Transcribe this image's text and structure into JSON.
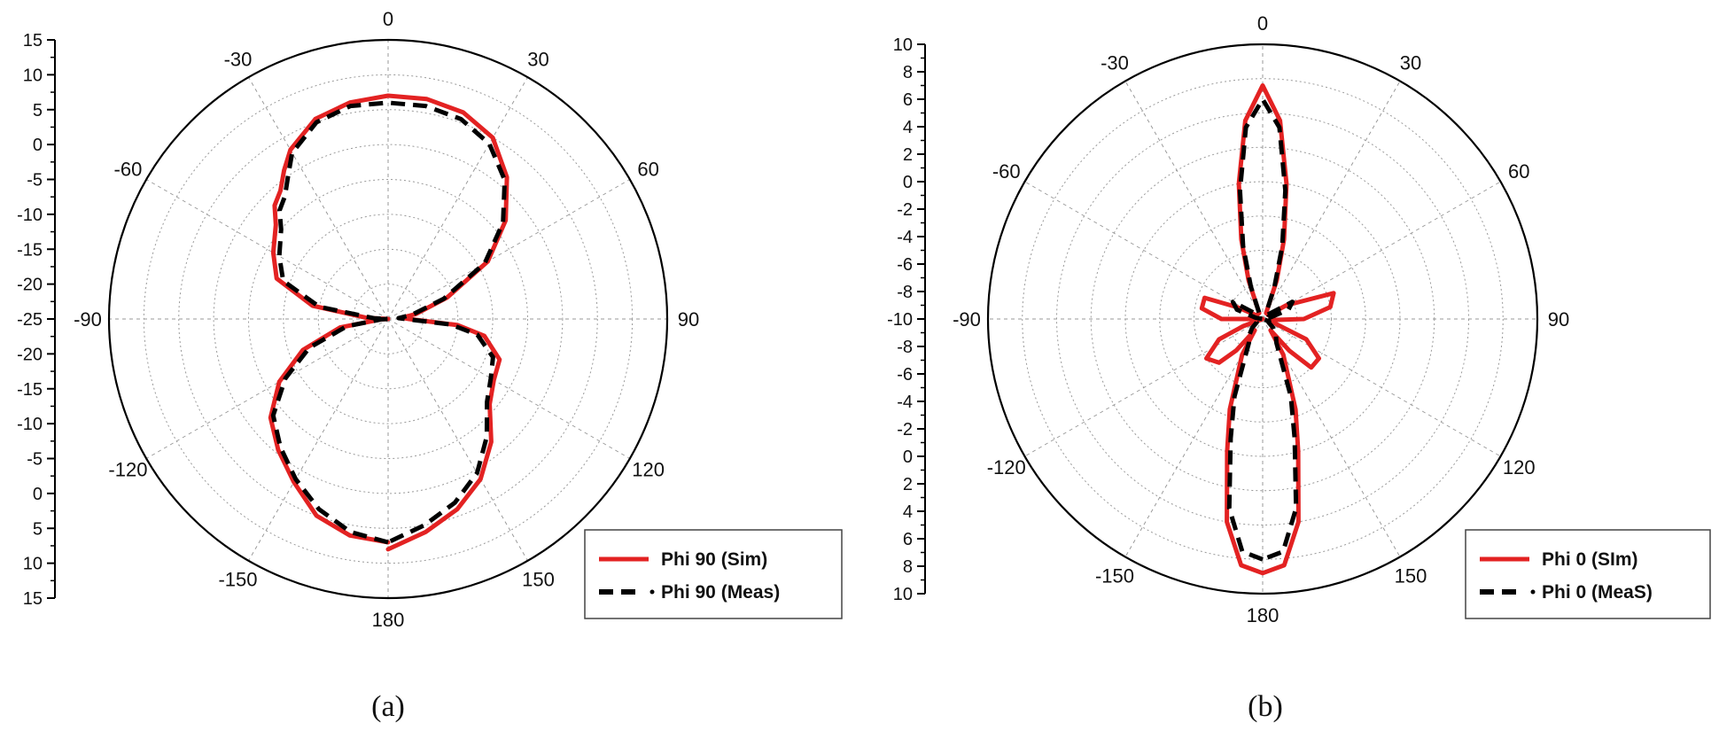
{
  "colors": {
    "sim": "#e32222",
    "meas": "#000000",
    "grid": "#9a9a9a",
    "axis": "#000000"
  },
  "chart_data": [
    {
      "type": "polar",
      "caption": "(a)",
      "angle_labels": [
        "0",
        "30",
        "60",
        "90",
        "120",
        "150",
        "180",
        "-150",
        "-120",
        "-90",
        "-60",
        "-30"
      ],
      "radial_ticks": [
        "15",
        "10",
        "5",
        "0",
        "-5",
        "-10",
        "-15",
        "-20",
        "-25",
        "-20",
        "-15",
        "-10",
        "-5",
        "0",
        "5",
        "10",
        "15"
      ],
      "r_min": -25,
      "r_max": 15,
      "legend": {
        "sim_label": "Phi 90 (Sim)",
        "meas_label": "Phi 90 (Meas)",
        "position": "bottom-right"
      },
      "series": [
        {
          "name": "Phi 90 (Sim)",
          "style": "solid",
          "theta": [
            -180,
            -170,
            -160,
            -150,
            -140,
            -130,
            -120,
            -110,
            -100,
            -93,
            -90,
            -87,
            -80,
            -70,
            -60,
            -50,
            -45,
            -40,
            -35,
            -30,
            -20,
            -10,
            0,
            10,
            20,
            30,
            40,
            50,
            60,
            70,
            80,
            85,
            90,
            95,
            100,
            110,
            120,
            130,
            140,
            150,
            160,
            170,
            180
          ],
          "r": [
            7,
            6.5,
            5,
            2,
            -0.5,
            -3,
            -7,
            -12,
            -18,
            -24,
            -25,
            -22,
            -14,
            -8,
            -6,
            -4,
            -2,
            -1,
            1,
            3,
            5.5,
            6.5,
            7,
            7,
            6.5,
            5,
            1.5,
            -3,
            -8.5,
            -16,
            -21,
            -23,
            -22,
            -15,
            -11,
            -8,
            -7.5,
            -6,
            -2,
            1.5,
            4,
            6,
            8
          ]
        },
        {
          "name": "Phi 90 (Meas)",
          "style": "dashed",
          "theta": [
            -180,
            -170,
            -160,
            -150,
            -140,
            -130,
            -120,
            -110,
            -100,
            -93,
            -90,
            -87,
            -80,
            -70,
            -60,
            -50,
            -45,
            -40,
            -35,
            -30,
            -20,
            -10,
            0,
            10,
            20,
            30,
            40,
            50,
            60,
            70,
            80,
            85,
            90,
            95,
            100,
            110,
            120,
            130,
            140,
            150,
            160,
            170,
            180
          ],
          "r": [
            7,
            6,
            4,
            1.5,
            -1,
            -3.5,
            -8,
            -13,
            -19,
            -24,
            -25,
            -23,
            -15,
            -9,
            -7,
            -5,
            -3,
            -2,
            0,
            2.5,
            5,
            6,
            6,
            6,
            5.5,
            4,
            1,
            -3.5,
            -9,
            -16.5,
            -21.5,
            -23.5,
            -22.5,
            -16,
            -12,
            -9,
            -8,
            -6.5,
            -3,
            0.5,
            3,
            5,
            7
          ]
        }
      ]
    },
    {
      "type": "polar",
      "caption": "(b)",
      "angle_labels": [
        "0",
        "30",
        "60",
        "90",
        "120",
        "150",
        "180",
        "-150",
        "-120",
        "-90",
        "-60",
        "-30"
      ],
      "radial_ticks": [
        "10",
        "8",
        "6",
        "4",
        "2",
        "0",
        "-2",
        "-4",
        "-6",
        "-8",
        "-10",
        "-8",
        "-6",
        "-4",
        "-2",
        "0",
        "2",
        "4",
        "6",
        "8",
        "10"
      ],
      "r_min": -10,
      "r_max": 10,
      "legend": {
        "sim_label": "Phi 0 (SIm)",
        "meas_label": "Phi 0 (MeaS)",
        "position": "bottom-right"
      },
      "series": [
        {
          "name": "Phi 0 (SIm)",
          "style": "solid",
          "theta": [
            -180,
            -175,
            -170,
            -165,
            -160,
            -150,
            -145,
            -140,
            -135,
            -125,
            -115,
            -110,
            -100,
            -90,
            -80,
            -70,
            -65,
            -60,
            -50,
            -40,
            -30,
            -20,
            -15,
            -10,
            -5,
            0,
            5,
            10,
            15,
            20,
            30,
            40,
            50,
            55,
            60,
            70,
            80,
            90,
            100,
            110,
            115,
            125,
            135,
            140,
            145,
            150,
            160,
            165,
            170,
            175,
            180
          ],
          "r": [
            8.5,
            8,
            5,
            0,
            -3,
            -7,
            -9,
            -7,
            -5.5,
            -5,
            -6.5,
            -8.5,
            -10,
            -7,
            -5.5,
            -5.5,
            -8,
            -9.5,
            -9.5,
            -9.5,
            -9.5,
            -7,
            -4,
            0,
            4.5,
            7,
            4.5,
            0,
            -4,
            -7,
            -9.5,
            -9.5,
            -9.5,
            -9.5,
            -8,
            -4.5,
            -5,
            -7,
            -9.5,
            -9,
            -6.5,
            -5,
            -5,
            -7,
            -9,
            -7,
            -3,
            0,
            5,
            8,
            8.5
          ]
        },
        {
          "name": "Phi 0 (MeaS)",
          "style": "dashed",
          "theta": [
            -180,
            -175,
            -170,
            -165,
            -160,
            -150,
            -140,
            -130,
            -120,
            -110,
            -100,
            -90,
            -80,
            -70,
            -60,
            -50,
            -40,
            -30,
            -20,
            -15,
            -10,
            -5,
            0,
            5,
            10,
            15,
            20,
            30,
            40,
            50,
            60,
            70,
            80,
            90,
            100,
            110,
            120,
            130,
            140,
            150,
            160,
            165,
            170,
            175,
            180
          ],
          "r": [
            7.5,
            7,
            4,
            -1,
            -4,
            -8,
            -8.5,
            -9,
            -9.5,
            -9.5,
            -10,
            -10,
            -9.5,
            -8,
            -7.5,
            -9.5,
            -9.5,
            -9.5,
            -7.5,
            -4.5,
            -0.5,
            4,
            6,
            4,
            -0.5,
            -4.5,
            -7.5,
            -9.5,
            -9.5,
            -9.5,
            -7.5,
            -8,
            -9.5,
            -10,
            -10,
            -9.5,
            -9.5,
            -9,
            -8.5,
            -8,
            -4,
            -1,
            4,
            7,
            7.5
          ]
        }
      ]
    }
  ]
}
